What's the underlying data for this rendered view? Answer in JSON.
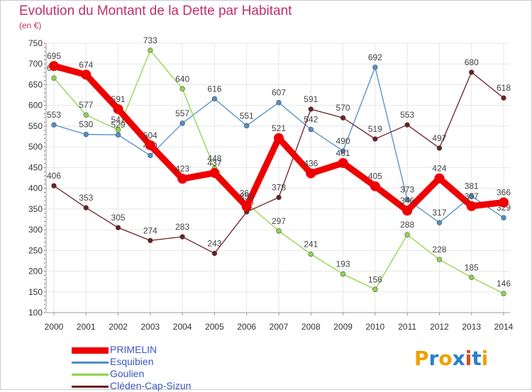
{
  "chart_title": "Evolution du Montant de la Dette par Habitant",
  "chart_subtitle": "(en €)",
  "logo_text": "Proxiti",
  "colors": {
    "title": "#c0306a",
    "grid": "#e6e6e6",
    "axis": "#999999",
    "legend_text": "#3a57c4",
    "logo": [
      "#f0a000",
      "#2a7fd0",
      "#f0a000",
      "#2a7fd0",
      "#e0481a",
      "#2a7fd0",
      "#f0a000"
    ]
  },
  "chart_data": {
    "type": "line",
    "title": "Evolution du Montant de la Dette par Habitant",
    "subtitle": "(en €)",
    "xlabel": "",
    "ylabel": "",
    "x": [
      2000,
      2001,
      2002,
      2003,
      2004,
      2005,
      2006,
      2007,
      2008,
      2009,
      2010,
      2011,
      2012,
      2013,
      2014
    ],
    "ylim": [
      100,
      750
    ],
    "yticks": [
      100,
      150,
      200,
      250,
      300,
      350,
      400,
      450,
      500,
      550,
      600,
      650,
      700,
      750
    ],
    "grid": true,
    "legend_position": "bottom-left",
    "series": [
      {
        "name": "PRIMELIN",
        "color": "#ee0000",
        "values": [
          695,
          674,
          591,
          504,
          423,
          437,
          356,
          521,
          436,
          461,
          405,
          346,
          424,
          357,
          366
        ],
        "labels": [
          "695",
          "674",
          "591",
          "504",
          "423",
          "437",
          "356",
          "521",
          "436",
          "461",
          "405",
          "346",
          "424",
          "357",
          "366"
        ],
        "emphasis": true
      },
      {
        "name": "Esquibien",
        "color": "#4f8fc8",
        "values": [
          553,
          530,
          529,
          479,
          557,
          616,
          551,
          607,
          542,
          490,
          692,
          373,
          317,
          381,
          329
        ],
        "labels": [
          "553",
          "530",
          "529",
          "479",
          "557",
          "616",
          "551",
          "607",
          "542",
          "490",
          "692",
          "373",
          "317",
          "381",
          "329"
        ],
        "emphasis": false
      },
      {
        "name": "Goulien",
        "color": "#8fd44a",
        "values": [
          666,
          577,
          541,
          733,
          640,
          448,
          364,
          297,
          241,
          193,
          156,
          288,
          228,
          185,
          146
        ],
        "labels": [
          "666",
          "577",
          "541",
          "733",
          "640",
          "448",
          "364",
          "297",
          "241",
          "193",
          "156",
          "288",
          "228",
          "185",
          "146"
        ],
        "emphasis": false
      },
      {
        "name": "Cléden-Cap-Sizun",
        "color": "#6b1f24",
        "values": [
          406,
          353,
          305,
          274,
          283,
          243,
          343,
          378,
          591,
          570,
          519,
          553,
          497,
          680,
          618
        ],
        "labels": [
          "406",
          "353",
          "305",
          "274",
          "283",
          "243",
          "343",
          "378",
          "591",
          "570",
          "519",
          "553",
          "497",
          "680",
          "618"
        ],
        "emphasis": false
      }
    ]
  }
}
